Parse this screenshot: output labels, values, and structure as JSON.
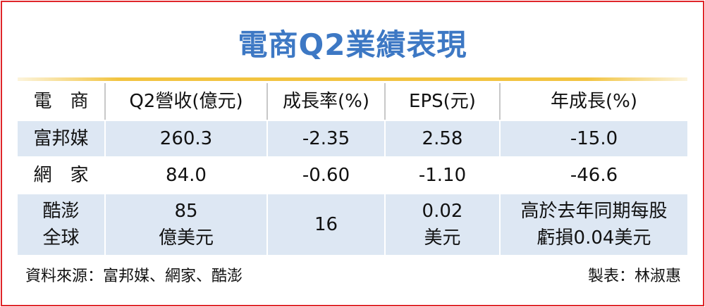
{
  "header": {
    "title": "電商Q2業績表現"
  },
  "table": {
    "columns": [
      "電　商",
      "Q2營收(億元)",
      "成長率(%)",
      "EPS(元)",
      "年成長(%)"
    ],
    "rows": [
      [
        "富邦媒",
        "260.3",
        "-2.35",
        "2.58",
        "-15.0"
      ],
      [
        "網　家",
        "84.0",
        "-0.60",
        "-1.10",
        "-46.6"
      ],
      [
        [
          "酷澎",
          "全球"
        ],
        [
          "85",
          "億美元"
        ],
        "16",
        [
          "0.02",
          "美元"
        ],
        [
          "高於去年同期每股",
          "虧損0.04美元"
        ]
      ]
    ]
  },
  "footer": {
    "source": "資料來源：富邦媒、網家、酷澎",
    "credit": "製表：林淑惠"
  }
}
